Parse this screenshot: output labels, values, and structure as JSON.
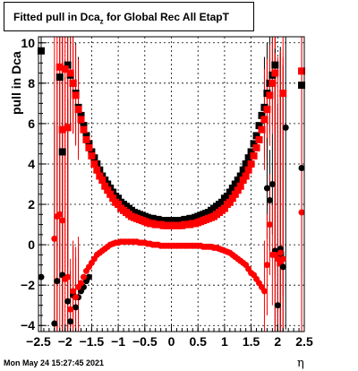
{
  "title": {
    "main": "Fitted pull in Dca",
    "sub": "z",
    "rest": " for Global Rec All EtapT"
  },
  "timestamp": "Mon May 24 15:27:45 2021",
  "colors": {
    "black_series": "#000000",
    "red_series": "#ff0000",
    "grid": "#000000"
  },
  "chart_data": {
    "type": "scatter",
    "xlabel": "η",
    "ylabel": "pull in Dca",
    "xlim": [
      -2.5,
      2.5
    ],
    "ylim": [
      -4.3,
      10.3
    ],
    "xticks": [
      -2.5,
      -2,
      -1.5,
      -1,
      -0.5,
      0,
      0.5,
      1,
      1.5,
      2,
      2.5
    ],
    "yticks": [
      -4,
      -2,
      0,
      2,
      4,
      6,
      8,
      10
    ],
    "grid": true,
    "series": [
      {
        "marker": "square",
        "color": "#000000",
        "x": [
          -2.45,
          -2.1,
          -2.05,
          -1.95,
          -1.9,
          -1.85,
          -1.8,
          -1.75,
          -1.7,
          -1.65,
          -1.6,
          -1.55,
          -1.5,
          -1.45,
          -1.4,
          -1.35,
          -1.3,
          -1.25,
          -1.2,
          -1.15,
          -1.1,
          -1.05,
          -1.0,
          -0.95,
          -0.9,
          -0.85,
          -0.8,
          -0.75,
          -0.7,
          -0.65,
          -0.6,
          -0.55,
          -0.5,
          -0.45,
          -0.4,
          -0.35,
          -0.3,
          -0.25,
          -0.2,
          -0.15,
          -0.1,
          -0.05,
          0.0,
          0.05,
          0.1,
          0.15,
          0.2,
          0.25,
          0.3,
          0.35,
          0.4,
          0.45,
          0.5,
          0.55,
          0.6,
          0.65,
          0.7,
          0.75,
          0.8,
          0.85,
          0.9,
          0.95,
          1.0,
          1.05,
          1.1,
          1.15,
          1.2,
          1.25,
          1.3,
          1.35,
          1.4,
          1.45,
          1.5,
          1.55,
          1.6,
          1.65,
          1.7,
          1.75,
          1.8,
          1.85,
          1.9,
          1.95,
          2.05,
          2.45
        ],
        "y": [
          9.6,
          8.3,
          4.6,
          8.9,
          8.4,
          8.0,
          7.5,
          6.8,
          6.4,
          5.9,
          5.4,
          5.0,
          4.6,
          4.3,
          4.0,
          3.7,
          3.4,
          3.2,
          3.0,
          2.8,
          2.6,
          2.4,
          2.3,
          2.1,
          2.0,
          1.9,
          1.8,
          1.7,
          1.6,
          1.55,
          1.5,
          1.45,
          1.4,
          1.35,
          1.3,
          1.3,
          1.25,
          1.25,
          1.2,
          1.2,
          1.2,
          1.2,
          1.2,
          1.2,
          1.2,
          1.2,
          1.2,
          1.25,
          1.25,
          1.3,
          1.3,
          1.35,
          1.4,
          1.45,
          1.5,
          1.55,
          1.6,
          1.7,
          1.8,
          1.9,
          2.0,
          2.1,
          2.3,
          2.4,
          2.6,
          2.8,
          3.0,
          3.2,
          3.4,
          3.7,
          4.0,
          4.3,
          4.6,
          5.0,
          5.4,
          5.9,
          6.4,
          6.8,
          7.5,
          8.0,
          8.4,
          8.9,
          -0.5,
          7.9
        ]
      },
      {
        "marker": "square",
        "color": "#ff0000",
        "x": [
          -2.1,
          -2.05,
          -2.0,
          -1.95,
          -1.9,
          -1.85,
          -1.8,
          -1.75,
          -1.7,
          -1.65,
          -1.6,
          -1.55,
          -1.5,
          -1.45,
          -1.4,
          -1.35,
          -1.3,
          -1.25,
          -1.2,
          -1.15,
          -1.1,
          -1.05,
          -1.0,
          -0.95,
          -0.9,
          -0.85,
          -0.8,
          -0.75,
          -0.7,
          -0.65,
          -0.6,
          -0.55,
          -0.5,
          -0.45,
          -0.4,
          -0.35,
          -0.3,
          -0.25,
          -0.2,
          -0.15,
          -0.1,
          -0.05,
          0.0,
          0.05,
          0.1,
          0.15,
          0.2,
          0.25,
          0.3,
          0.35,
          0.4,
          0.45,
          0.5,
          0.55,
          0.6,
          0.65,
          0.7,
          0.75,
          0.8,
          0.85,
          0.9,
          0.95,
          1.0,
          1.05,
          1.1,
          1.15,
          1.2,
          1.25,
          1.3,
          1.35,
          1.4,
          1.45,
          1.5,
          1.55,
          1.6,
          1.65,
          1.7,
          1.75,
          1.8,
          1.85,
          1.9,
          1.95,
          2.05,
          2.1,
          2.45
        ],
        "y": [
          8.8,
          5.7,
          8.7,
          5.8,
          8.5,
          8.0,
          7.4,
          6.7,
          6.2,
          5.7,
          5.2,
          4.8,
          4.4,
          4.0,
          3.7,
          3.4,
          3.2,
          2.9,
          2.7,
          2.5,
          2.3,
          2.1,
          2.0,
          1.8,
          1.7,
          1.6,
          1.5,
          1.4,
          1.35,
          1.3,
          1.25,
          1.2,
          1.15,
          1.1,
          1.05,
          1.05,
          1.0,
          1.0,
          1.0,
          0.95,
          0.95,
          0.95,
          0.95,
          0.95,
          0.95,
          0.95,
          0.95,
          1.0,
          1.0,
          1.0,
          1.05,
          1.05,
          1.1,
          1.15,
          1.2,
          1.25,
          1.3,
          1.35,
          1.4,
          1.5,
          1.6,
          1.7,
          1.8,
          2.0,
          2.1,
          2.3,
          2.5,
          2.7,
          2.9,
          3.2,
          3.4,
          3.7,
          4.0,
          4.4,
          4.8,
          5.2,
          5.7,
          6.2,
          6.7,
          7.4,
          8.0,
          8.5,
          -0.9,
          7.5,
          8.6
        ]
      },
      {
        "marker": "circle",
        "color": "#000000",
        "x": [
          -2.45,
          -2.2,
          -2.15,
          -2.05,
          -1.95,
          -1.9,
          -1.85,
          -1.8,
          -1.75,
          -1.7,
          -1.65,
          -1.6,
          -1.55,
          1.8,
          1.85,
          1.9,
          1.95,
          2.0,
          2.05,
          2.1,
          2.15,
          2.45
        ],
        "y": [
          -1.6,
          -3.9,
          -1.8,
          -1.5,
          -2.8,
          -3.8,
          -2.5,
          -3.1,
          -2.6,
          -2.3,
          -2.1,
          -1.8,
          -1.6,
          2.8,
          2.2,
          3.0,
          -0.3,
          -3.0,
          -0.2,
          -1.1,
          5.8,
          3.8
        ]
      },
      {
        "marker": "circle",
        "color": "#ff0000",
        "x": [
          -2.2,
          -2.15,
          -2.1,
          -2.05,
          -2.0,
          -1.95,
          -1.9,
          -1.85,
          -1.8,
          -1.75,
          -1.7,
          -1.65,
          -1.6,
          -1.55,
          -1.5,
          -1.45,
          -1.4,
          -1.35,
          -1.3,
          -1.25,
          -1.2,
          -1.15,
          -1.1,
          -1.05,
          -1.0,
          -0.95,
          -0.9,
          -0.85,
          -0.8,
          -0.75,
          -0.7,
          -0.65,
          -0.6,
          -0.55,
          -0.5,
          -0.45,
          -0.4,
          -0.35,
          -0.3,
          -0.25,
          -0.2,
          -0.15,
          -0.1,
          -0.05,
          0.0,
          0.05,
          0.1,
          0.15,
          0.2,
          0.25,
          0.3,
          0.35,
          0.4,
          0.45,
          0.5,
          0.55,
          0.6,
          0.65,
          0.7,
          0.75,
          0.8,
          0.85,
          0.9,
          0.95,
          1.0,
          1.05,
          1.1,
          1.15,
          1.2,
          1.25,
          1.3,
          1.35,
          1.4,
          1.45,
          1.5,
          1.55,
          1.6,
          1.65,
          1.7,
          1.75,
          1.8,
          1.85,
          1.9,
          1.95,
          2.0,
          2.05,
          2.1,
          2.45
        ],
        "y": [
          0.3,
          1.4,
          1.5,
          1.2,
          -1.7,
          -1.6,
          -3.2,
          -2.3,
          -2.6,
          -2.1,
          -1.9,
          -1.6,
          -1.3,
          -1.1,
          -0.9,
          -0.7,
          -0.5,
          -0.4,
          -0.3,
          -0.2,
          -0.1,
          0.0,
          0.05,
          0.1,
          0.1,
          0.15,
          0.15,
          0.15,
          0.15,
          0.15,
          0.15,
          0.15,
          0.1,
          0.1,
          0.1,
          0.05,
          0.05,
          0.0,
          0.0,
          0.0,
          -0.05,
          -0.05,
          -0.05,
          -0.05,
          -0.05,
          -0.05,
          -0.05,
          -0.05,
          -0.05,
          -0.05,
          -0.05,
          -0.05,
          -0.05,
          -0.05,
          -0.05,
          -0.05,
          -0.1,
          -0.1,
          -0.1,
          -0.1,
          -0.15,
          -0.15,
          -0.2,
          -0.25,
          -0.3,
          -0.35,
          -0.4,
          -0.5,
          -0.6,
          -0.7,
          -0.8,
          -0.9,
          -1.0,
          -1.2,
          -1.4,
          -1.5,
          -1.7,
          -1.9,
          -2.1,
          -2.3,
          -1.0,
          1.0,
          -0.5,
          -0.5,
          -0.7,
          -0.4,
          -0.7,
          1.6
        ]
      }
    ]
  }
}
